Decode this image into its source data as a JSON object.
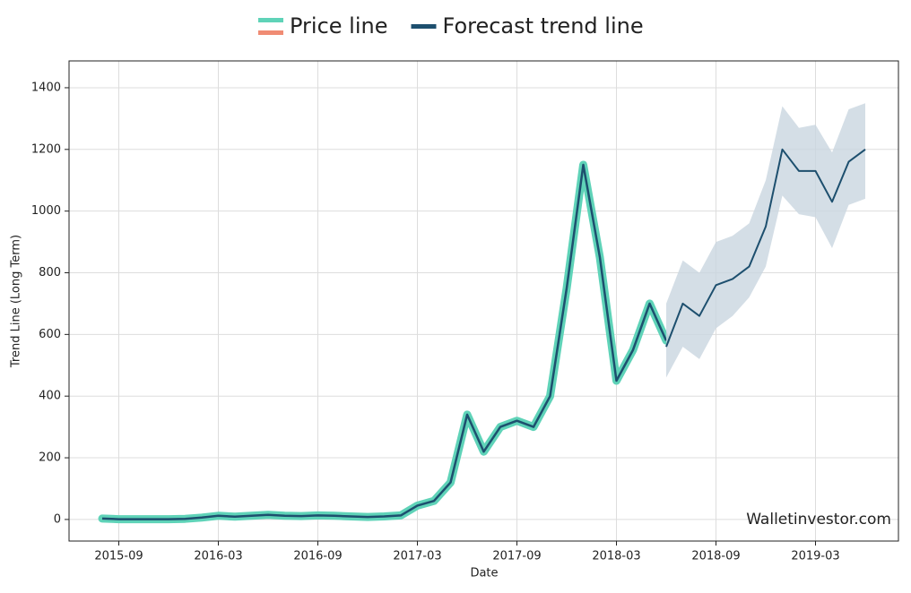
{
  "chart_data": {
    "type": "line",
    "xlabel": "Date",
    "ylabel": "Trend Line (Long Term)",
    "watermark": "Walletinvestor.com",
    "xlim": [
      "2015-06",
      "2019-08"
    ],
    "xticks": [
      "2015-09",
      "2016-03",
      "2016-09",
      "2017-03",
      "2017-09",
      "2018-03",
      "2018-09",
      "2019-03"
    ],
    "ylim": [
      -70,
      1487
    ],
    "yticks": [
      0,
      200,
      400,
      600,
      800,
      1000,
      1200,
      1400
    ],
    "grid": true,
    "legend": "top",
    "band_color": "#c9d6e0",
    "series": [
      {
        "name": "Price line",
        "color": "#5fd3b8",
        "accent": "#f08c74",
        "line_color": "#1d4f6e",
        "x": [
          "2015-08",
          "2015-09",
          "2015-10",
          "2015-11",
          "2015-12",
          "2016-01",
          "2016-02",
          "2016-03",
          "2016-04",
          "2016-05",
          "2016-06",
          "2016-07",
          "2016-08",
          "2016-09",
          "2016-10",
          "2016-11",
          "2016-12",
          "2017-01",
          "2017-02",
          "2017-03",
          "2017-04",
          "2017-05",
          "2017-06",
          "2017-07",
          "2017-08",
          "2017-09",
          "2017-10",
          "2017-11",
          "2017-12",
          "2018-01",
          "2018-02",
          "2018-03",
          "2018-04",
          "2018-05",
          "2018-06"
        ],
        "values": [
          3,
          1,
          1,
          1,
          1,
          2,
          6,
          12,
          9,
          12,
          15,
          12,
          11,
          13,
          12,
          10,
          8,
          10,
          13,
          45,
          60,
          120,
          340,
          220,
          300,
          320,
          300,
          400,
          750,
          1150,
          850,
          450,
          550,
          700,
          580
        ]
      },
      {
        "name": "Forecast trend line",
        "color": "#1d4f6e",
        "x": [
          "2018-06",
          "2018-07",
          "2018-08",
          "2018-09",
          "2018-10",
          "2018-11",
          "2018-12",
          "2019-01",
          "2019-02",
          "2019-03",
          "2019-04",
          "2019-05",
          "2019-06"
        ],
        "values": [
          560,
          700,
          660,
          760,
          780,
          820,
          950,
          1200,
          1130,
          1130,
          1030,
          1160,
          1200
        ],
        "lower": [
          460,
          560,
          520,
          620,
          660,
          720,
          820,
          1050,
          990,
          980,
          880,
          1020,
          1040
        ],
        "upper": [
          700,
          840,
          800,
          900,
          920,
          960,
          1100,
          1340,
          1270,
          1280,
          1190,
          1330,
          1350
        ]
      }
    ]
  }
}
